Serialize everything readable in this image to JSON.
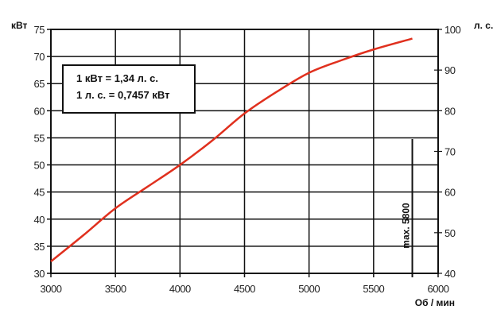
{
  "chart_data": {
    "type": "line",
    "xlabel": "Об / мин",
    "ylabel": "кВт",
    "y2label": "л. с.",
    "xlim": [
      3000,
      6000
    ],
    "ylim": [
      30,
      75
    ],
    "y2lim": [
      40,
      100
    ],
    "xticks": [
      3000,
      3500,
      4000,
      4500,
      5000,
      5500,
      6000
    ],
    "yticks": [
      30,
      35,
      40,
      45,
      50,
      55,
      60,
      65,
      70,
      75
    ],
    "y2ticks": [
      40,
      50,
      60,
      70,
      80,
      90,
      100
    ],
    "grid": true,
    "series": [
      {
        "color": "#e0301e",
        "x": [
          3000,
          3250,
          3500,
          3750,
          4000,
          4250,
          4500,
          4750,
          5000,
          5250,
          5500,
          5800
        ],
        "y": [
          32.2,
          37.0,
          42.0,
          46.0,
          50.0,
          54.5,
          59.5,
          63.5,
          67.0,
          69.3,
          71.3,
          73.3
        ]
      }
    ],
    "annotations": {
      "conversion": [
        "1 кВт = 1,34 л. с.",
        "1 л. с. = 0,7457 кВт"
      ],
      "max_line": {
        "x": 5800,
        "label": "max. 5800"
      }
    }
  }
}
